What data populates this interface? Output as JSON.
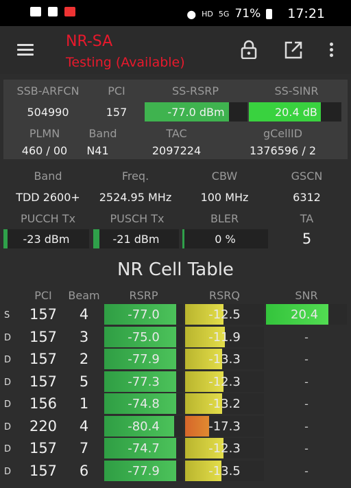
{
  "status": {
    "net_hd": "HD",
    "net_5g": "5G",
    "battery": "71%",
    "time": "17:21"
  },
  "app": {
    "title": "NR-SA",
    "subtitle": "Testing (Available)"
  },
  "serving": {
    "ssb_arfcn_label": "SSB-ARFCN",
    "ssb_arfcn": "504990",
    "pci_label": "PCI",
    "pci": "157",
    "rsrp_label": "SS-RSRP",
    "rsrp": "-77.0 dBm",
    "rsrp_level": 0.82,
    "sinr_label": "SS-SINR",
    "sinr": "20.4 dB",
    "sinr_level": 0.78,
    "plmn_label": "PLMN",
    "plmn": "460 / 00",
    "band_label": "Band",
    "band": "N41",
    "tac_label": "TAC",
    "tac": "2097224",
    "gcellid_label": "gCellID",
    "gcellid": "1376596 / 2"
  },
  "carrier": {
    "band_label": "Band",
    "band": "TDD 2600+",
    "freq_label": "Freq.",
    "freq": "2524.95 MHz",
    "cbw_label": "CBW",
    "cbw": "100 MHz",
    "gscn_label": "GSCN",
    "gscn": "6312",
    "pucch_label": "PUCCH Tx",
    "pucch": "-23 dBm",
    "pucch_level": 0.05,
    "pusch_label": "PUSCH Tx",
    "pusch": "-21 dBm",
    "pusch_level": 0.07,
    "bler_label": "BLER",
    "bler": "0 %",
    "bler_level": 0.02,
    "ta_label": "TA",
    "ta": "5"
  },
  "table": {
    "title": "NR Cell Table",
    "headers": {
      "pci": "PCI",
      "beam": "Beam",
      "rsrp": "RSRP",
      "rsrq": "RSRQ",
      "snr": "SNR"
    },
    "rows": [
      {
        "type": "S",
        "pci": "157",
        "beam": "4",
        "rsrp": "-77.0",
        "rsrp_level": 0.91,
        "rsrq": "-12.5",
        "rsrq_level": 0.49,
        "snr": "20.4",
        "snr_level": 0.77
      },
      {
        "type": "D",
        "pci": "157",
        "beam": "3",
        "rsrp": "-75.0",
        "rsrp_level": 0.91,
        "rsrq": "-11.9",
        "rsrq_level": 0.5,
        "snr": "-",
        "snr_level": 0
      },
      {
        "type": "D",
        "pci": "157",
        "beam": "2",
        "rsrp": "-77.9",
        "rsrp_level": 0.91,
        "rsrq": "-13.3",
        "rsrq_level": 0.47,
        "snr": "-",
        "snr_level": 0
      },
      {
        "type": "D",
        "pci": "157",
        "beam": "5",
        "rsrp": "-77.3",
        "rsrp_level": 0.91,
        "rsrq": "-12.3",
        "rsrq_level": 0.49,
        "snr": "-",
        "snr_level": 0
      },
      {
        "type": "D",
        "pci": "156",
        "beam": "1",
        "rsrp": "-74.8",
        "rsrp_level": 0.91,
        "rsrq": "-13.2",
        "rsrq_level": 0.47,
        "snr": "-",
        "snr_level": 0
      },
      {
        "type": "D",
        "pci": "220",
        "beam": "4",
        "rsrp": "-80.4",
        "rsrp_level": 0.89,
        "rsrq": "-17.3",
        "rsrq_level": 0.3,
        "snr": "-",
        "snr_level": 0
      },
      {
        "type": "D",
        "pci": "157",
        "beam": "7",
        "rsrp": "-74.7",
        "rsrp_level": 0.91,
        "rsrq": "-12.3",
        "rsrq_level": 0.49,
        "snr": "-",
        "snr_level": 0
      },
      {
        "type": "D",
        "pci": "157",
        "beam": "6",
        "rsrp": "-77.9",
        "rsrp_level": 0.91,
        "rsrq": "-13.5",
        "rsrq_level": 0.46,
        "snr": "-",
        "snr_level": 0
      }
    ]
  },
  "colors": {
    "good": "#3fb34f",
    "excellent": "#39d23f",
    "fair": "#c8c23a",
    "poor": "#d6662a",
    "tx": "#2fa04a",
    "accent": "#e8192c"
  },
  "icons": [
    "menu-icon",
    "lock-icon",
    "open-external-icon",
    "more-vert-icon",
    "gallery-icon",
    "signal-icon",
    "flag-icon",
    "location-icon",
    "battery-icon"
  ]
}
